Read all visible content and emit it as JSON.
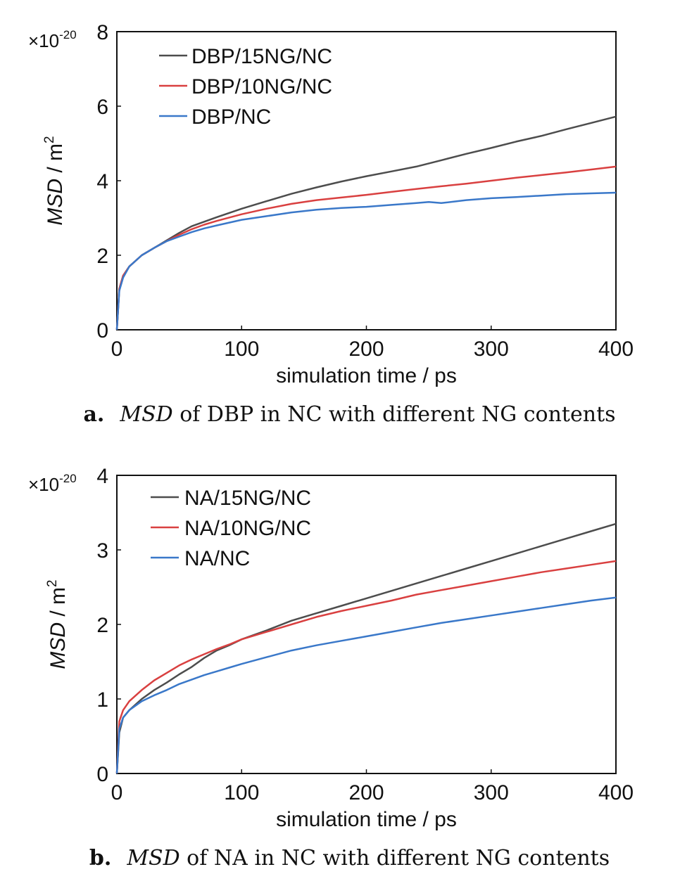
{
  "chart_data": [
    {
      "type": "line",
      "ylabel_italic": "MSD",
      "ylabel_unit": " / m",
      "ylabel_sup": "2",
      "xlabel": "simulation time / ps",
      "exponent_prefix": "×10",
      "exponent_sup": "-20",
      "xlim": [
        0,
        400
      ],
      "ylim": [
        0,
        8
      ],
      "xticks": [
        "0",
        "100",
        "200",
        "300",
        "400"
      ],
      "yticks": [
        "0",
        "2",
        "4",
        "6",
        "8"
      ],
      "legend_position": "top-left",
      "series": [
        {
          "name": "DBP/15NG/NC",
          "color": "#4d4d4d",
          "x": [
            0,
            2,
            5,
            10,
            20,
            30,
            40,
            50,
            60,
            70,
            80,
            100,
            120,
            140,
            160,
            180,
            200,
            220,
            240,
            260,
            280,
            300,
            320,
            340,
            360,
            380,
            400
          ],
          "y": [
            0,
            1.1,
            1.45,
            1.7,
            2.0,
            2.2,
            2.4,
            2.6,
            2.78,
            2.9,
            3.02,
            3.25,
            3.45,
            3.65,
            3.82,
            3.98,
            4.12,
            4.25,
            4.38,
            4.55,
            4.72,
            4.88,
            5.05,
            5.2,
            5.38,
            5.55,
            5.72
          ]
        },
        {
          "name": "DBP/10NG/NC",
          "color": "#d94040",
          "x": [
            0,
            2,
            5,
            10,
            20,
            30,
            40,
            50,
            60,
            70,
            80,
            100,
            120,
            140,
            160,
            180,
            200,
            220,
            240,
            260,
            280,
            300,
            320,
            340,
            360,
            380,
            400
          ],
          "y": [
            0,
            1.1,
            1.45,
            1.7,
            2.0,
            2.2,
            2.38,
            2.55,
            2.7,
            2.82,
            2.92,
            3.1,
            3.25,
            3.38,
            3.48,
            3.55,
            3.62,
            3.7,
            3.78,
            3.85,
            3.92,
            4.0,
            4.08,
            4.15,
            4.22,
            4.3,
            4.38
          ]
        },
        {
          "name": "DBP/NC",
          "color": "#3a78c9",
          "x": [
            0,
            2,
            5,
            10,
            20,
            30,
            40,
            50,
            60,
            70,
            80,
            100,
            120,
            140,
            160,
            180,
            200,
            220,
            240,
            250,
            260,
            280,
            300,
            320,
            340,
            360,
            380,
            400
          ],
          "y": [
            0,
            1.05,
            1.4,
            1.7,
            2.0,
            2.2,
            2.38,
            2.5,
            2.62,
            2.72,
            2.8,
            2.95,
            3.05,
            3.15,
            3.22,
            3.27,
            3.3,
            3.35,
            3.4,
            3.43,
            3.4,
            3.48,
            3.53,
            3.56,
            3.6,
            3.64,
            3.66,
            3.68
          ]
        }
      ]
    },
    {
      "type": "line",
      "ylabel_italic": "MSD",
      "ylabel_unit": " / m",
      "ylabel_sup": "2",
      "xlabel": "simulation time / ps",
      "exponent_prefix": "×10",
      "exponent_sup": "-20",
      "xlim": [
        0,
        400
      ],
      "ylim": [
        0,
        4
      ],
      "xticks": [
        "0",
        "100",
        "200",
        "300",
        "400"
      ],
      "yticks": [
        "0",
        "1",
        "2",
        "3",
        "4"
      ],
      "legend_position": "top-left",
      "series": [
        {
          "name": "NA/15NG/NC",
          "color": "#4d4d4d",
          "x": [
            0,
            2,
            5,
            10,
            20,
            30,
            40,
            50,
            60,
            70,
            80,
            90,
            100,
            120,
            140,
            160,
            180,
            200,
            220,
            240,
            260,
            280,
            300,
            320,
            340,
            360,
            380,
            400
          ],
          "y": [
            0,
            0.55,
            0.75,
            0.85,
            1.0,
            1.12,
            1.22,
            1.33,
            1.43,
            1.55,
            1.65,
            1.72,
            1.8,
            1.92,
            2.05,
            2.15,
            2.25,
            2.35,
            2.45,
            2.55,
            2.65,
            2.75,
            2.85,
            2.95,
            3.05,
            3.15,
            3.25,
            3.35
          ]
        },
        {
          "name": "NA/10NG/NC",
          "color": "#d94040",
          "x": [
            0,
            2,
            5,
            10,
            20,
            30,
            40,
            50,
            60,
            70,
            80,
            90,
            100,
            120,
            140,
            160,
            180,
            200,
            220,
            240,
            260,
            280,
            300,
            320,
            340,
            360,
            380,
            400
          ],
          "y": [
            0,
            0.7,
            0.85,
            0.97,
            1.12,
            1.25,
            1.35,
            1.45,
            1.53,
            1.6,
            1.67,
            1.73,
            1.8,
            1.9,
            2.0,
            2.1,
            2.18,
            2.25,
            2.32,
            2.4,
            2.46,
            2.52,
            2.58,
            2.64,
            2.7,
            2.75,
            2.8,
            2.85
          ]
        },
        {
          "name": "NA/NC",
          "color": "#3a78c9",
          "x": [
            0,
            2,
            5,
            10,
            20,
            30,
            40,
            50,
            60,
            70,
            80,
            90,
            100,
            120,
            140,
            160,
            180,
            200,
            220,
            240,
            260,
            280,
            300,
            320,
            340,
            360,
            380,
            400
          ],
          "y": [
            0,
            0.6,
            0.75,
            0.85,
            0.97,
            1.05,
            1.12,
            1.2,
            1.26,
            1.32,
            1.37,
            1.42,
            1.47,
            1.56,
            1.65,
            1.72,
            1.78,
            1.84,
            1.9,
            1.96,
            2.02,
            2.07,
            2.12,
            2.17,
            2.22,
            2.27,
            2.32,
            2.36
          ]
        }
      ]
    }
  ],
  "captions": [
    {
      "letter": "a.",
      "italic": "MSD",
      "rest": " of DBP in NC with different NG contents"
    },
    {
      "letter": "b.",
      "italic": "MSD",
      "rest": " of NA in NC with different NG contents"
    }
  ]
}
